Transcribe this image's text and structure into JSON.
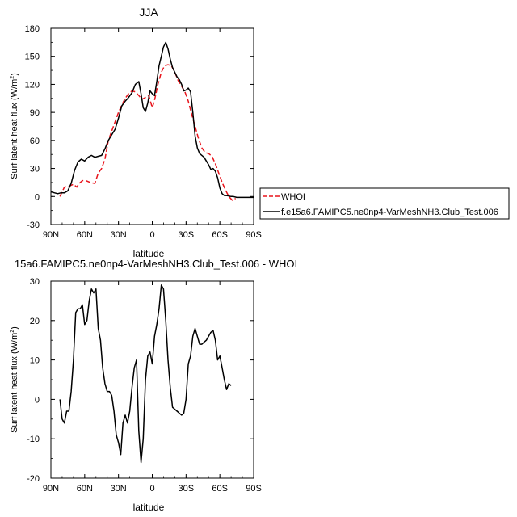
{
  "chart_data": [
    {
      "type": "line",
      "title": "JJA",
      "xlabel": "latitude",
      "ylabel": "Surf latent heat flux (W/m",
      "ylabel_sup": "2",
      "ylabel_close": ")",
      "xlim": [
        90,
        -90
      ],
      "ylim": [
        -30,
        180
      ],
      "xticks": [
        {
          "value": 90,
          "label": "90N"
        },
        {
          "value": 60,
          "label": "60N"
        },
        {
          "value": 30,
          "label": "30N"
        },
        {
          "value": 0,
          "label": "0"
        },
        {
          "value": -30,
          "label": "30S"
        },
        {
          "value": -60,
          "label": "60S"
        },
        {
          "value": -90,
          "label": "90S"
        }
      ],
      "yticks": [
        -30,
        0,
        30,
        60,
        90,
        120,
        150,
        180
      ],
      "legend_position": "right",
      "series": [
        {
          "name": "WHOI",
          "color": "#e8141c",
          "dash": "dashed",
          "x": [
            82,
            78,
            74,
            70,
            67,
            65,
            62,
            59,
            55,
            51,
            48,
            45,
            42,
            39,
            36,
            33,
            30,
            27,
            24,
            21,
            18,
            15,
            12,
            9,
            6,
            3,
            0,
            -2,
            -5,
            -8,
            -11,
            -14,
            -17,
            -20,
            -23,
            -26,
            -29,
            -32,
            -35,
            -38,
            -41,
            -44,
            -47,
            -50,
            -53,
            -56,
            -59,
            -62,
            -65,
            -68,
            -71,
            -74
          ],
          "y": [
            0,
            10,
            11,
            13,
            10,
            14,
            17,
            17,
            15,
            14,
            25,
            30,
            40,
            60,
            70,
            80,
            90,
            98,
            105,
            110,
            113,
            112,
            108,
            104,
            106,
            108,
            95,
            103,
            120,
            133,
            140,
            141,
            140,
            133,
            124,
            118,
            112,
            102,
            88,
            75,
            62,
            52,
            47,
            46,
            43,
            35,
            25,
            15,
            7,
            0,
            -4,
            -2
          ]
        },
        {
          "name": "f.e15a6.FAMIPC5.ne0np4-VarMeshNH3.Club_Test.006",
          "color": "#000000",
          "dash": "solid",
          "x": [
            90,
            87,
            84,
            81,
            78,
            75,
            72,
            69,
            66,
            63,
            60,
            57,
            54,
            51,
            48,
            45,
            42,
            39,
            36,
            33,
            30,
            27,
            24,
            21,
            18,
            15,
            12,
            10,
            8,
            6,
            4,
            2,
            0,
            -2,
            -4,
            -6,
            -8,
            -10,
            -12,
            -14,
            -16,
            -18,
            -20,
            -22,
            -24,
            -26,
            -28,
            -30,
            -32,
            -34,
            -36,
            -38,
            -40,
            -42,
            -44,
            -46,
            -48,
            -50,
            -52,
            -54,
            -56,
            -58,
            -60,
            -62,
            -64,
            -66,
            -68,
            -70,
            -72,
            -75,
            -80,
            -85,
            -90
          ],
          "y": [
            5,
            4,
            3,
            4,
            4,
            6,
            14,
            28,
            37,
            40,
            38,
            42,
            44,
            42,
            43,
            44,
            51,
            60,
            66,
            72,
            84,
            97,
            102,
            106,
            111,
            120,
            123,
            110,
            95,
            91,
            100,
            113,
            110,
            108,
            123,
            140,
            150,
            160,
            165,
            158,
            147,
            138,
            133,
            128,
            125,
            120,
            113,
            114,
            116,
            112,
            90,
            65,
            52,
            46,
            44,
            42,
            38,
            34,
            29,
            30,
            27,
            20,
            9,
            3,
            1,
            1,
            0.5,
            0,
            0,
            -1,
            -1,
            -1,
            -1
          ]
        }
      ]
    },
    {
      "type": "line",
      "title": "15a6.FAMIPC5.ne0np4-VarMeshNH3.Club_Test.006 - WHOI",
      "xlabel": "latitude",
      "ylabel": "Surf latent heat flux (W/m",
      "ylabel_sup": "2",
      "ylabel_close": ")",
      "xlim": [
        90,
        -90
      ],
      "ylim": [
        -20,
        30
      ],
      "xticks": [
        {
          "value": 90,
          "label": "90N"
        },
        {
          "value": 60,
          "label": "60N"
        },
        {
          "value": 30,
          "label": "30N"
        },
        {
          "value": 0,
          "label": "0"
        },
        {
          "value": -30,
          "label": "30S"
        },
        {
          "value": -60,
          "label": "60S"
        },
        {
          "value": -90,
          "label": "90S"
        }
      ],
      "yticks": [
        -20,
        -10,
        0,
        10,
        20,
        30
      ],
      "series": [
        {
          "name": "",
          "color": "#000000",
          "dash": "solid",
          "x": [
            82,
            80,
            78,
            76,
            74,
            72,
            70,
            68,
            66,
            64,
            62,
            60,
            58,
            56,
            54,
            52,
            50,
            48,
            46,
            44,
            42,
            40,
            38,
            36,
            34,
            32,
            30,
            28,
            26,
            24,
            22,
            20,
            18,
            16,
            14,
            12,
            10,
            8,
            6,
            4,
            2,
            0,
            -2,
            -4,
            -6,
            -8,
            -10,
            -12,
            -14,
            -16,
            -18,
            -20,
            -22,
            -24,
            -26,
            -28,
            -30,
            -32,
            -34,
            -36,
            -38,
            -40,
            -42,
            -44,
            -46,
            -48,
            -50,
            -52,
            -54,
            -56,
            -58,
            -60,
            -62,
            -64,
            -66,
            -68,
            -70
          ],
          "y": [
            0,
            -5,
            -6,
            -3,
            -3,
            2,
            10,
            22,
            23,
            23,
            24,
            19,
            20,
            25,
            28,
            27,
            28,
            18,
            15,
            8,
            4,
            2,
            2,
            1,
            -3,
            -9,
            -11,
            -14,
            -6,
            -4,
            -6,
            -3,
            3,
            8,
            10,
            -8,
            -16,
            -10,
            5,
            11,
            12,
            9,
            16,
            19,
            23,
            29,
            28,
            20,
            10,
            3,
            -2,
            -2.5,
            -3,
            -3.5,
            -4,
            -3.5,
            0,
            9,
            11,
            16,
            18,
            16,
            14,
            14,
            14.5,
            15,
            16,
            17,
            17.5,
            15,
            10,
            11,
            8,
            5,
            2.5,
            4,
            3.5
          ]
        }
      ]
    }
  ]
}
